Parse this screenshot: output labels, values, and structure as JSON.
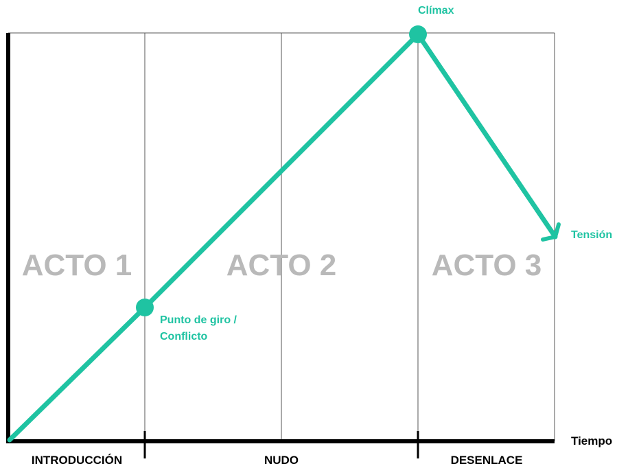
{
  "colors": {
    "accent": "#1FC3A2",
    "act_label": "#B9B9B9",
    "axis": "#000000",
    "grid": "#555555"
  },
  "acts": [
    "ACTO 1",
    "ACTO 2",
    "ACTO 3"
  ],
  "phases": [
    "INTRODUCCIÓN",
    "NUDO",
    "DESENLACE"
  ],
  "axis": {
    "x_label": "Tiempo"
  },
  "curve": {
    "label": "Tensión",
    "points": {
      "climax": "Clímax",
      "turning_point_line1": "Punto de giro /",
      "turning_point_line2": "Conflicto"
    }
  }
}
